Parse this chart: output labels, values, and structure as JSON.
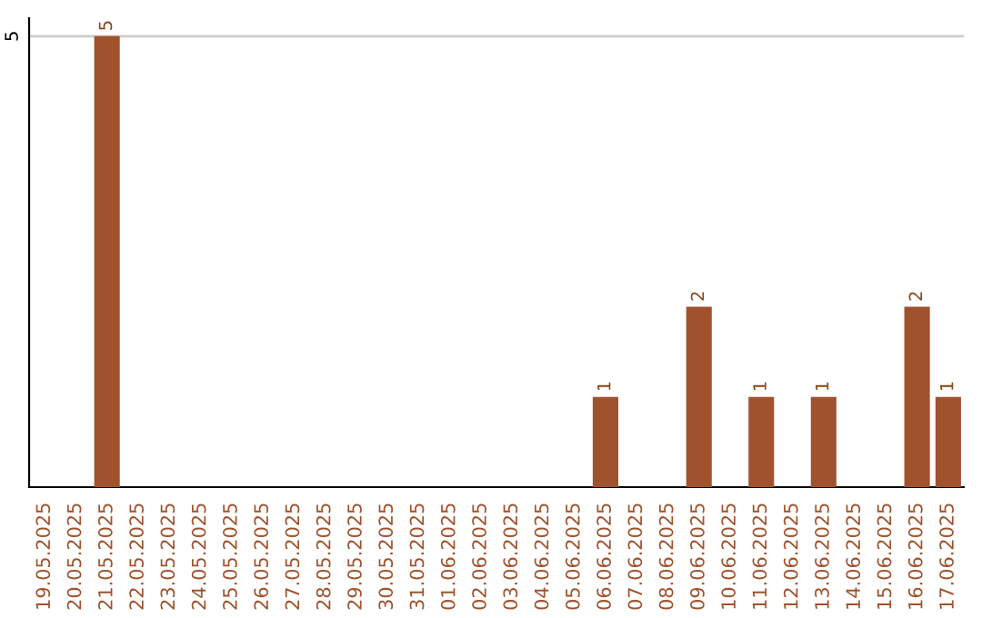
{
  "chart_data": {
    "type": "bar",
    "categories": [
      "19.05.2025",
      "20.05.2025",
      "21.05.2025",
      "22.05.2025",
      "23.05.2025",
      "24.05.2025",
      "25.05.2025",
      "26.05.2025",
      "27.05.2025",
      "28.05.2025",
      "29.05.2025",
      "30.05.2025",
      "31.05.2025",
      "01.06.2025",
      "02.06.2025",
      "03.06.2025",
      "04.06.2025",
      "05.06.2025",
      "06.06.2025",
      "07.06.2025",
      "08.06.2025",
      "09.06.2025",
      "10.06.2025",
      "11.06.2025",
      "12.06.2025",
      "13.06.2025",
      "14.06.2025",
      "15.06.2025",
      "16.06.2025",
      "17.06.2025"
    ],
    "values": [
      0,
      0,
      5,
      0,
      0,
      0,
      0,
      0,
      0,
      0,
      0,
      0,
      0,
      0,
      0,
      0,
      0,
      0,
      1,
      0,
      0,
      2,
      0,
      1,
      0,
      1,
      0,
      0,
      2,
      1
    ],
    "value_labels": [
      null,
      null,
      "5",
      null,
      null,
      null,
      null,
      null,
      null,
      null,
      null,
      null,
      null,
      null,
      null,
      null,
      null,
      null,
      "1",
      null,
      null,
      "2",
      null,
      "1",
      null,
      "1",
      null,
      null,
      "2",
      "1"
    ],
    "color": "#a0522d",
    "ylim": [
      0,
      5.2
    ],
    "yticks": [
      5
    ],
    "grid": "y",
    "legend": false
  }
}
